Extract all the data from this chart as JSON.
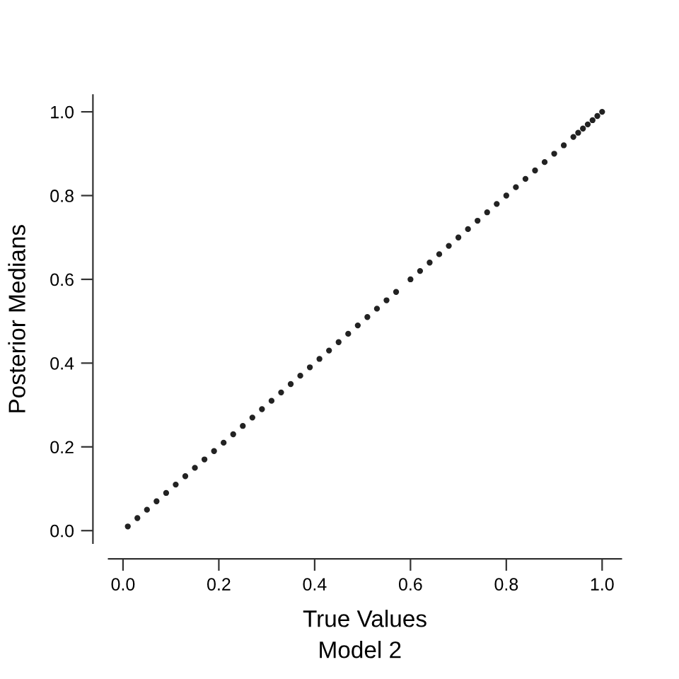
{
  "chart_data": {
    "type": "scatter",
    "xlabel": "True Values",
    "ylabel": "Posterior Medians",
    "subtitle": "Model 2",
    "x": [
      0.01,
      0.03,
      0.05,
      0.07,
      0.09,
      0.11,
      0.13,
      0.15,
      0.17,
      0.19,
      0.21,
      0.23,
      0.25,
      0.27,
      0.29,
      0.31,
      0.33,
      0.35,
      0.37,
      0.39,
      0.41,
      0.43,
      0.45,
      0.47,
      0.49,
      0.51,
      0.53,
      0.55,
      0.57,
      0.6,
      0.62,
      0.64,
      0.66,
      0.68,
      0.7,
      0.72,
      0.74,
      0.76,
      0.78,
      0.8,
      0.82,
      0.84,
      0.86,
      0.88,
      0.9,
      0.92,
      0.94,
      0.95,
      0.96,
      0.97,
      0.98,
      0.99,
      1.0
    ],
    "series": [
      {
        "color": "#222222",
        "values": [
          0.01,
          0.03,
          0.05,
          0.07,
          0.09,
          0.11,
          0.13,
          0.15,
          0.17,
          0.19,
          0.21,
          0.23,
          0.25,
          0.27,
          0.29,
          0.31,
          0.33,
          0.35,
          0.37,
          0.39,
          0.41,
          0.43,
          0.45,
          0.47,
          0.49,
          0.51,
          0.53,
          0.55,
          0.57,
          0.6,
          0.62,
          0.64,
          0.66,
          0.68,
          0.7,
          0.72,
          0.74,
          0.76,
          0.78,
          0.8,
          0.82,
          0.84,
          0.86,
          0.88,
          0.9,
          0.92,
          0.94,
          0.95,
          0.96,
          0.97,
          0.98,
          0.99,
          1.0
        ]
      }
    ],
    "xlim": [
      -0.03,
      1.04
    ],
    "ylim": [
      -0.03,
      1.04
    ],
    "xticks": [
      {
        "value": 0,
        "label": "0.0"
      },
      0.2,
      0.4,
      0.6,
      0.8,
      {
        "value": 1,
        "label": "1.0"
      }
    ],
    "yticks": [
      {
        "value": 0,
        "label": "0.0"
      },
      0.2,
      0.4,
      0.6,
      0.8,
      {
        "value": 1,
        "label": "1.0"
      }
    ],
    "grid": false,
    "marker": "circle"
  }
}
